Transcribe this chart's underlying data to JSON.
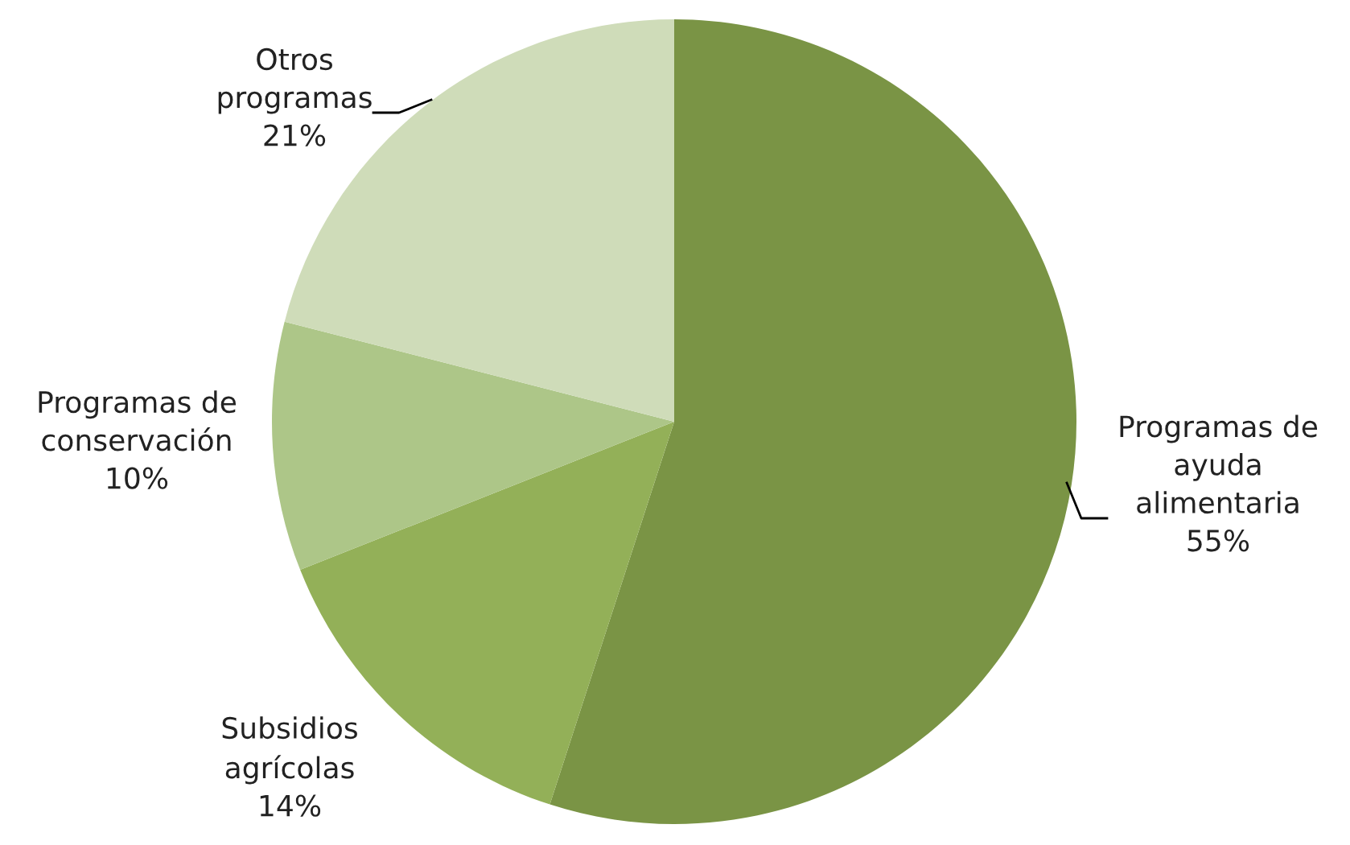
{
  "chart_data": {
    "type": "pie",
    "categories": [
      "Programas de\nayuda\nalimentaria",
      "Subsidios\nagrícolas",
      "Programas de\nconservación",
      "Otros\nprogramas"
    ],
    "values": [
      55,
      14,
      10,
      21
    ],
    "value_labels": [
      "55%",
      "14%",
      "10%",
      "21%"
    ],
    "colors": [
      "#7a9445",
      "#93b058",
      "#adc688",
      "#cfdcb9"
    ]
  }
}
